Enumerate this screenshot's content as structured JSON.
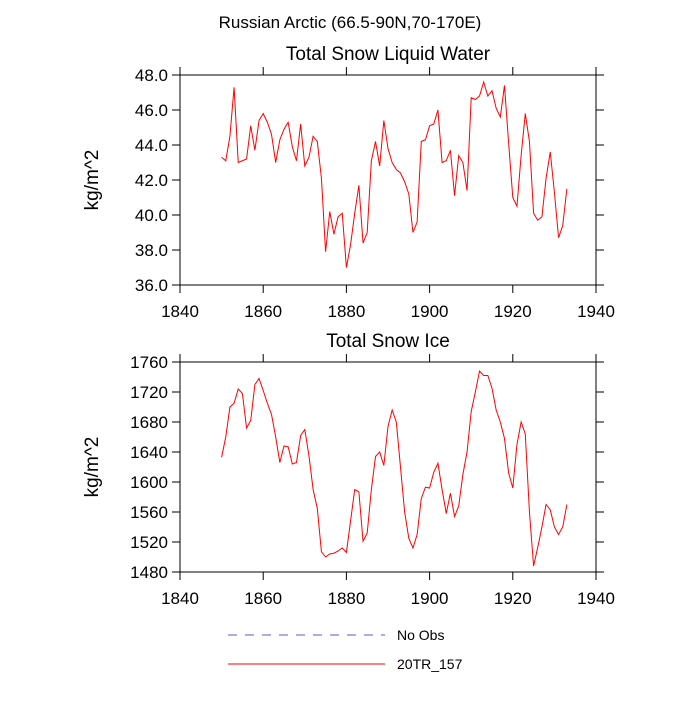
{
  "suptitle": "Russian Arctic (66.5-90N,70-170E)",
  "legend": [
    {
      "name": "No Obs",
      "color": "#5a5ad2",
      "dash": true
    },
    {
      "name": "20TR_157",
      "color": "#ff0000",
      "dash": false
    }
  ],
  "chart_data": [
    {
      "type": "line",
      "title": "Total Snow Liquid Water",
      "ylabel": "kg/m^2",
      "x": [
        1850,
        1851,
        1852,
        1853,
        1854,
        1855,
        1856,
        1857,
        1858,
        1859,
        1860,
        1861,
        1862,
        1863,
        1864,
        1865,
        1866,
        1867,
        1868,
        1869,
        1870,
        1871,
        1872,
        1873,
        1874,
        1875,
        1876,
        1877,
        1878,
        1879,
        1880,
        1881,
        1882,
        1883,
        1884,
        1885,
        1886,
        1887,
        1888,
        1889,
        1890,
        1891,
        1892,
        1893,
        1894,
        1895,
        1896,
        1897,
        1898,
        1899,
        1900,
        1901,
        1902,
        1903,
        1904,
        1905,
        1906,
        1907,
        1908,
        1909,
        1910,
        1911,
        1912,
        1913,
        1914,
        1915,
        1916,
        1917,
        1918,
        1919,
        1920,
        1921,
        1922,
        1923,
        1924,
        1925,
        1926,
        1927,
        1928,
        1929,
        1930,
        1931,
        1932,
        1933
      ],
      "series": [
        {
          "color": "#ff0000",
          "values": [
            43.3,
            43.1,
            44.5,
            47.3,
            43.0,
            43.1,
            43.2,
            45.1,
            43.7,
            45.4,
            45.8,
            45.3,
            44.6,
            43.0,
            44.3,
            44.9,
            45.3,
            43.9,
            43.1,
            45.2,
            42.8,
            43.3,
            44.5,
            44.2,
            42.1,
            37.9,
            40.2,
            38.9,
            39.9,
            40.1,
            37.0,
            38.3,
            40.1,
            41.7,
            38.4,
            39.0,
            43.1,
            44.2,
            42.8,
            45.4,
            43.8,
            43.0,
            42.6,
            42.4,
            41.9,
            41.2,
            39.0,
            39.6,
            44.2,
            44.3,
            45.1,
            45.2,
            46.0,
            43.0,
            43.1,
            43.7,
            41.1,
            43.4,
            43.0,
            41.4,
            46.7,
            46.6,
            46.8,
            47.6,
            46.8,
            47.1,
            46.1,
            45.6,
            47.4,
            44.1,
            41.0,
            40.5,
            43.4,
            45.8,
            44.2,
            40.1,
            39.7,
            39.9,
            42.1,
            43.6,
            41.3,
            38.7,
            39.4,
            41.5
          ]
        }
      ],
      "xlim": [
        1840,
        1940
      ],
      "xticks": [
        1840,
        1860,
        1880,
        1900,
        1920,
        1940
      ],
      "ylim": [
        36,
        48
      ],
      "yticks": [
        {
          "value": 36,
          "label": "36.0"
        },
        {
          "value": 38,
          "label": "38.0"
        },
        {
          "value": 40,
          "label": "40.0"
        },
        {
          "value": 42,
          "label": "42.0"
        },
        {
          "value": 44,
          "label": "44.0"
        },
        {
          "value": 46,
          "label": "46.0"
        },
        {
          "value": 48,
          "label": "48.0"
        }
      ]
    },
    {
      "type": "line",
      "title": "Total Snow Ice",
      "ylabel": "kg/m^2",
      "x": [
        1850,
        1851,
        1852,
        1853,
        1854,
        1855,
        1856,
        1857,
        1858,
        1859,
        1860,
        1861,
        1862,
        1863,
        1864,
        1865,
        1866,
        1867,
        1868,
        1869,
        1870,
        1871,
        1872,
        1873,
        1874,
        1875,
        1876,
        1877,
        1878,
        1879,
        1880,
        1881,
        1882,
        1883,
        1884,
        1885,
        1886,
        1887,
        1888,
        1889,
        1890,
        1891,
        1892,
        1893,
        1894,
        1895,
        1896,
        1897,
        1898,
        1899,
        1900,
        1901,
        1902,
        1903,
        1904,
        1905,
        1906,
        1907,
        1908,
        1909,
        1910,
        1911,
        1912,
        1913,
        1914,
        1915,
        1916,
        1917,
        1918,
        1919,
        1920,
        1921,
        1922,
        1923,
        1924,
        1925,
        1926,
        1927,
        1928,
        1929,
        1930,
        1931,
        1932,
        1933
      ],
      "series": [
        {
          "color": "#ff0000",
          "values": [
            1633,
            1660,
            1700,
            1705,
            1724,
            1718,
            1672,
            1682,
            1730,
            1738,
            1722,
            1705,
            1690,
            1660,
            1626,
            1648,
            1647,
            1624,
            1626,
            1662,
            1670,
            1635,
            1590,
            1565,
            1507,
            1500,
            1504,
            1505,
            1508,
            1512,
            1506,
            1548,
            1590,
            1587,
            1521,
            1532,
            1590,
            1634,
            1640,
            1622,
            1674,
            1696,
            1680,
            1620,
            1560,
            1525,
            1512,
            1530,
            1578,
            1593,
            1592,
            1613,
            1625,
            1590,
            1558,
            1585,
            1554,
            1568,
            1610,
            1640,
            1694,
            1720,
            1748,
            1742,
            1742,
            1725,
            1696,
            1680,
            1658,
            1612,
            1592,
            1650,
            1680,
            1664,
            1560,
            1488,
            1513,
            1540,
            1570,
            1563,
            1540,
            1530,
            1540,
            1570
          ]
        }
      ],
      "xlim": [
        1840,
        1940
      ],
      "xticks": [
        1840,
        1860,
        1880,
        1900,
        1920,
        1940
      ],
      "ylim": [
        1480,
        1760
      ],
      "yticks": [
        1480,
        1520,
        1560,
        1600,
        1640,
        1680,
        1720,
        1760
      ]
    }
  ]
}
